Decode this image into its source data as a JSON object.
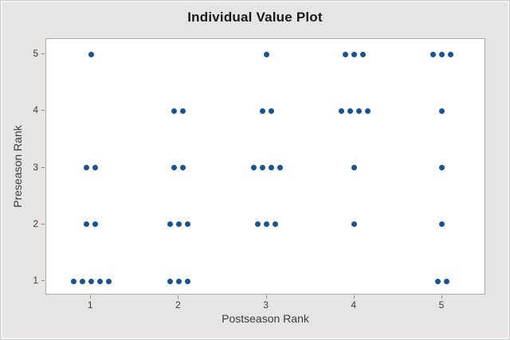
{
  "chart_data": {
    "type": "scatter",
    "title": "Individual Value Plot",
    "xlabel": "Postseason Rank",
    "ylabel": "Preseason Rank",
    "xlim": [
      0.49,
      5.5
    ],
    "ylim": [
      0.75,
      5.27
    ],
    "x_ticks": [
      1,
      2,
      3,
      4,
      5
    ],
    "y_ticks": [
      1,
      2,
      3,
      4,
      5
    ],
    "grid": false,
    "legend": false,
    "marker_color": "#165493",
    "marker_diameter_px": 7,
    "dodge_spacing_px": 11,
    "points": [
      {
        "x": 1,
        "y": 5,
        "count": 1
      },
      {
        "x": 3,
        "y": 5,
        "count": 1
      },
      {
        "x": 4,
        "y": 5,
        "count": 3
      },
      {
        "x": 5,
        "y": 5,
        "count": 3
      },
      {
        "x": 2,
        "y": 4,
        "count": 2
      },
      {
        "x": 3,
        "y": 4,
        "count": 2
      },
      {
        "x": 4,
        "y": 4,
        "count": 4
      },
      {
        "x": 5,
        "y": 4,
        "count": 1
      },
      {
        "x": 1,
        "y": 3,
        "count": 2
      },
      {
        "x": 2,
        "y": 3,
        "count": 2
      },
      {
        "x": 3,
        "y": 3,
        "count": 4
      },
      {
        "x": 4,
        "y": 3,
        "count": 1
      },
      {
        "x": 5,
        "y": 3,
        "count": 1
      },
      {
        "x": 1,
        "y": 2,
        "count": 2
      },
      {
        "x": 2,
        "y": 2,
        "count": 3
      },
      {
        "x": 3,
        "y": 2,
        "count": 3
      },
      {
        "x": 4,
        "y": 2,
        "count": 1
      },
      {
        "x": 5,
        "y": 2,
        "count": 1
      },
      {
        "x": 1,
        "y": 1,
        "count": 5
      },
      {
        "x": 2,
        "y": 1,
        "count": 3
      },
      {
        "x": 5,
        "y": 1,
        "count": 2
      }
    ]
  },
  "colors": {
    "canvas_background": "#e6e5e3",
    "plot_background": "#ffffff",
    "plot_border": "#a9a9a9",
    "marker": "#165493",
    "title_text": "#1a1a1a",
    "axis_text": "#3c3c3c"
  }
}
